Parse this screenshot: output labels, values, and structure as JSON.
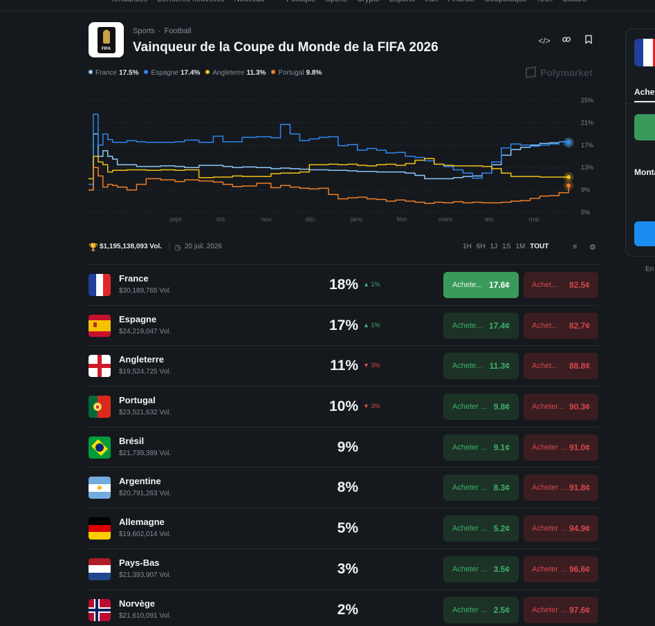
{
  "topnav": [
    "Tendances",
    "Dernières nouvelles",
    "Nouveau",
    "·",
    "Politique",
    "Sports",
    "Crypto",
    "Esports",
    "Iran",
    "Finance",
    "Géopolitique",
    "Tech",
    "Culture"
  ],
  "header": {
    "logo_text": "FIFA",
    "breadcrumb": [
      "Sports",
      "Football"
    ],
    "title": "Vainqueur de la Coupe du Monde de la FIFA 2026"
  },
  "legend": [
    {
      "name": "France",
      "value": "17.5%",
      "color": "#8ec9ff"
    },
    {
      "name": "Espagne",
      "value": "17.4%",
      "color": "#2f86f0"
    },
    {
      "name": "Angleterre",
      "value": "11.3%",
      "color": "#f2c21b"
    },
    {
      "name": "Portugal",
      "value": "9.8%",
      "color": "#f07f2a"
    }
  ],
  "brand": "Polymarket",
  "chart_data": {
    "type": "line",
    "x_ticks": [
      "sept.",
      "oct.",
      "nov.",
      "déc.",
      "janv.",
      "févr.",
      "mars",
      "avr.",
      "mai"
    ],
    "y_ticks": [
      "25%",
      "21%",
      "17%",
      "13%",
      "9%",
      "5%"
    ],
    "ylim": [
      5,
      25
    ],
    "x": [
      0,
      1,
      2,
      3,
      4,
      5,
      6,
      8,
      10,
      12,
      15,
      18,
      20,
      23,
      26,
      28,
      30,
      32,
      35,
      38,
      40,
      42,
      44,
      46,
      48,
      50,
      52,
      54,
      56,
      58,
      60,
      62,
      64,
      66,
      68,
      70,
      72,
      74,
      76,
      78,
      80,
      82,
      84,
      86,
      88,
      90,
      92,
      94,
      96,
      98,
      100
    ],
    "series": [
      {
        "name": "France",
        "color": "#8ec9ff",
        "values": [
          9,
          19,
          15,
          16,
          15,
          14.5,
          13.5,
          13.5,
          13.2,
          13.2,
          13.3,
          13.2,
          13.0,
          13.4,
          13.4,
          13.2,
          13.0,
          13.1,
          13.0,
          12.8,
          12.9,
          12.8,
          12.7,
          12.6,
          12.6,
          12.5,
          12.5,
          12.4,
          12.3,
          12.3,
          12.2,
          12.2,
          12.2,
          12.0,
          11.6,
          11.0,
          11.0,
          11.0,
          11.2,
          11.4,
          11.5,
          12.0,
          13.5,
          15.2,
          16.2,
          16.6,
          17.0,
          17.3,
          17.4,
          17.6,
          17.5
        ]
      },
      {
        "name": "Espagne",
        "color": "#2f86f0",
        "values": [
          10,
          22.5,
          17,
          19,
          18,
          17.5,
          17.5,
          17.8,
          17.6,
          17.5,
          17.5,
          17.6,
          17.9,
          17.5,
          18.6,
          17.6,
          17.6,
          18.4,
          18.5,
          18.3,
          20.7,
          19.0,
          17.8,
          18.1,
          18.4,
          18.5,
          16.9,
          17.1,
          16.1,
          16.4,
          16.1,
          15.6,
          15.7,
          15.0,
          14.8,
          14.2,
          13.6,
          13.2,
          12.6,
          12.0,
          11.1,
          12.0,
          14.0,
          16.5,
          17.2,
          17.0,
          16.8,
          17.0,
          17.2,
          17.6,
          17.4
        ]
      },
      {
        "name": "Angleterre",
        "color": "#f2c21b",
        "values": [
          11,
          15,
          14,
          13.5,
          12.2,
          12.5,
          12.5,
          12.6,
          12.6,
          12.5,
          12.6,
          12.5,
          12.6,
          11.2,
          11.3,
          11.3,
          11.5,
          11.4,
          11.4,
          11.9,
          12.0,
          12.0,
          12.2,
          13.5,
          13.5,
          13.6,
          13.5,
          13.6,
          13.4,
          13.3,
          13.5,
          13.6,
          13.4,
          13.7,
          14.3,
          14.6,
          13.6,
          13.4,
          13.3,
          13.3,
          13.3,
          13.2,
          12.8,
          12.0,
          11.4,
          11.4,
          11.4,
          11.3,
          11.3,
          11.3,
          11.3
        ]
      },
      {
        "name": "Portugal",
        "color": "#f07f2a",
        "values": [
          9,
          13,
          11.5,
          9.5,
          10,
          9.8,
          9.5,
          9.0,
          10.0,
          11.0,
          10.8,
          10.5,
          10.8,
          10.6,
          10.4,
          10.0,
          9.6,
          9.7,
          10.2,
          9.4,
          9.8,
          9.5,
          9.3,
          9.2,
          9.3,
          8.2,
          7.4,
          7.6,
          7.7,
          7.4,
          7.3,
          7.0,
          7.2,
          7.0,
          6.8,
          6.6,
          6.8,
          6.7,
          6.9,
          6.7,
          6.8,
          6.7,
          6.7,
          6.8,
          7.0,
          7.1,
          7.5,
          7.9,
          8.0,
          8.5,
          9.8
        ]
      }
    ]
  },
  "stats": {
    "volume": "$1,195,138,093 Vol.",
    "date": "20 juil. 2026",
    "ranges": [
      "1H",
      "6H",
      "1J",
      "1S",
      "1M",
      "TOUT"
    ],
    "active_range": "TOUT"
  },
  "outcomes": [
    {
      "name": "France",
      "volume": "$30,189,765 Vol.",
      "pct": "18%",
      "change": "1%",
      "dir": "up",
      "buy_label": "Achete...",
      "buy": "17.6¢",
      "sell_label": "Achet...",
      "sell": "82.5¢",
      "active": true,
      "flag": "fr"
    },
    {
      "name": "Espagne",
      "volume": "$24,219,047 Vol.",
      "pct": "17%",
      "change": "1%",
      "dir": "up",
      "buy_label": "Achete...",
      "buy": "17.4¢",
      "sell_label": "Achet...",
      "sell": "82.7¢",
      "flag": "es"
    },
    {
      "name": "Angleterre",
      "volume": "$19,524,725 Vol.",
      "pct": "11%",
      "change": "3%",
      "dir": "down",
      "buy_label": "Achete...",
      "buy": "11.3¢",
      "sell_label": "Achet...",
      "sell": "88.8¢",
      "flag": "en"
    },
    {
      "name": "Portugal",
      "volume": "$23,521,632 Vol.",
      "pct": "10%",
      "change": "3%",
      "dir": "down",
      "buy_label": "Acheter ...",
      "buy": "9.8¢",
      "sell_label": "Acheter...",
      "sell": "90.3¢",
      "flag": "pt"
    },
    {
      "name": "Brésil",
      "volume": "$21,739,389 Vol.",
      "pct": "9%",
      "change": "",
      "dir": "",
      "buy_label": "Acheter ...",
      "buy": "9.1¢",
      "sell_label": "Acheter ...",
      "sell": "91.0¢",
      "flag": "br"
    },
    {
      "name": "Argentine",
      "volume": "$20,791,263 Vol.",
      "pct": "8%",
      "change": "",
      "dir": "",
      "buy_label": "Acheter ...",
      "buy": "8.3¢",
      "sell_label": "Acheter ...",
      "sell": "91.8¢",
      "flag": "ar"
    },
    {
      "name": "Allemagne",
      "volume": "$19,602,014 Vol.",
      "pct": "5%",
      "change": "",
      "dir": "",
      "buy_label": "Acheter ...",
      "buy": "5.2¢",
      "sell_label": "Acheter ...",
      "sell": "94.9¢",
      "flag": "de"
    },
    {
      "name": "Pays-Bas",
      "volume": "$21,393,907 Vol.",
      "pct": "3%",
      "change": "",
      "dir": "",
      "buy_label": "Acheter ...",
      "buy": "3.5¢",
      "sell_label": "Acheter ...",
      "sell": "96.6¢",
      "flag": "nl"
    },
    {
      "name": "Norvège",
      "volume": "$21,610,091 Vol.",
      "pct": "2%",
      "change": "",
      "dir": "",
      "buy_label": "Acheter ...",
      "buy": "2.5¢",
      "sell_label": "Acheter ...",
      "sell": "97.6¢",
      "flag": "no"
    }
  ],
  "side": {
    "tab": "Acheter",
    "amount_label": "Montant",
    "footer": "En"
  }
}
